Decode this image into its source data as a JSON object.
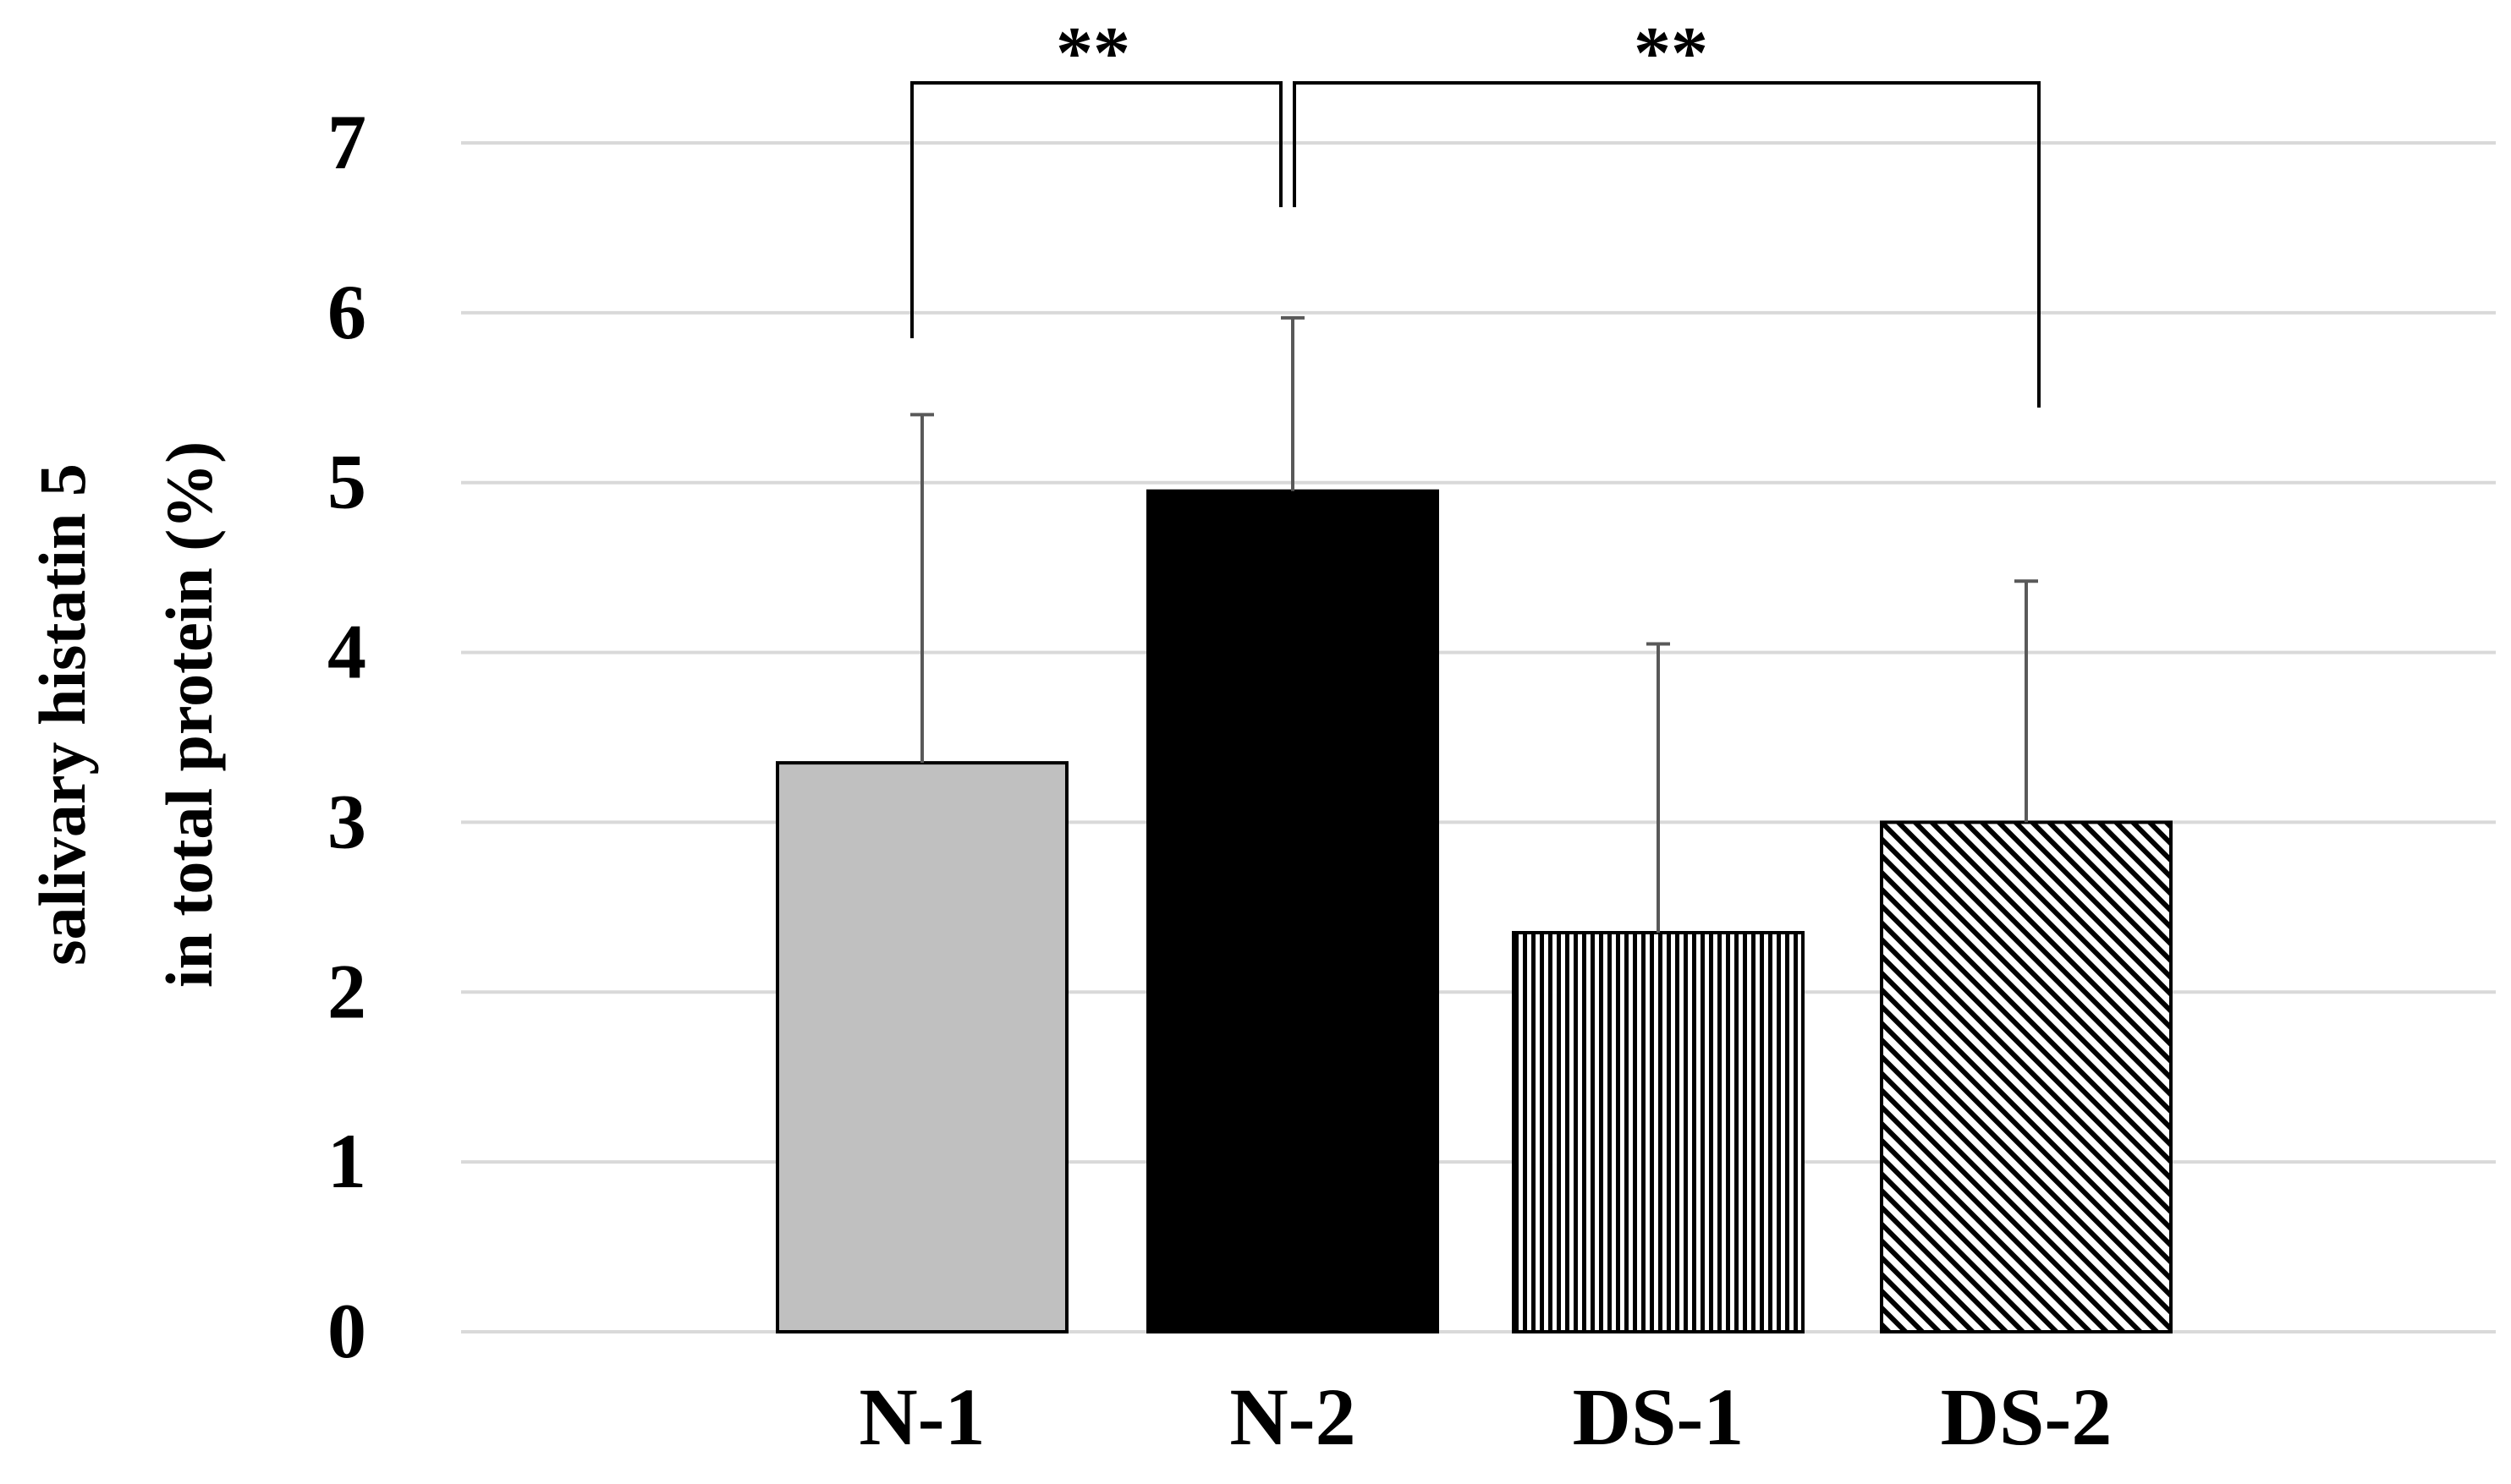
{
  "chart_data": {
    "type": "bar",
    "title": "",
    "xlabel": "",
    "ylabel_lines": [
      "salivary histatin 5",
      "in total protein (%)"
    ],
    "categories": [
      "N-1",
      "N-2",
      "DS-1",
      "DS-2"
    ],
    "values": [
      3.35,
      4.95,
      2.35,
      3.0
    ],
    "errors": [
      2.05,
      1.02,
      1.7,
      1.42
    ],
    "fills": [
      "#c0c0c0",
      "#000000",
      "pattern-vertical",
      "pattern-diagonal"
    ],
    "ylim": [
      0,
      7
    ],
    "yticks": [
      "0",
      "1",
      "2",
      "3",
      "4",
      "5",
      "6",
      "7"
    ],
    "grid": true,
    "annotations": [
      {
        "label": "**",
        "from": "N-1",
        "to": "N-2"
      },
      {
        "label": "**",
        "from": "N-2",
        "to": "DS-2"
      }
    ]
  }
}
